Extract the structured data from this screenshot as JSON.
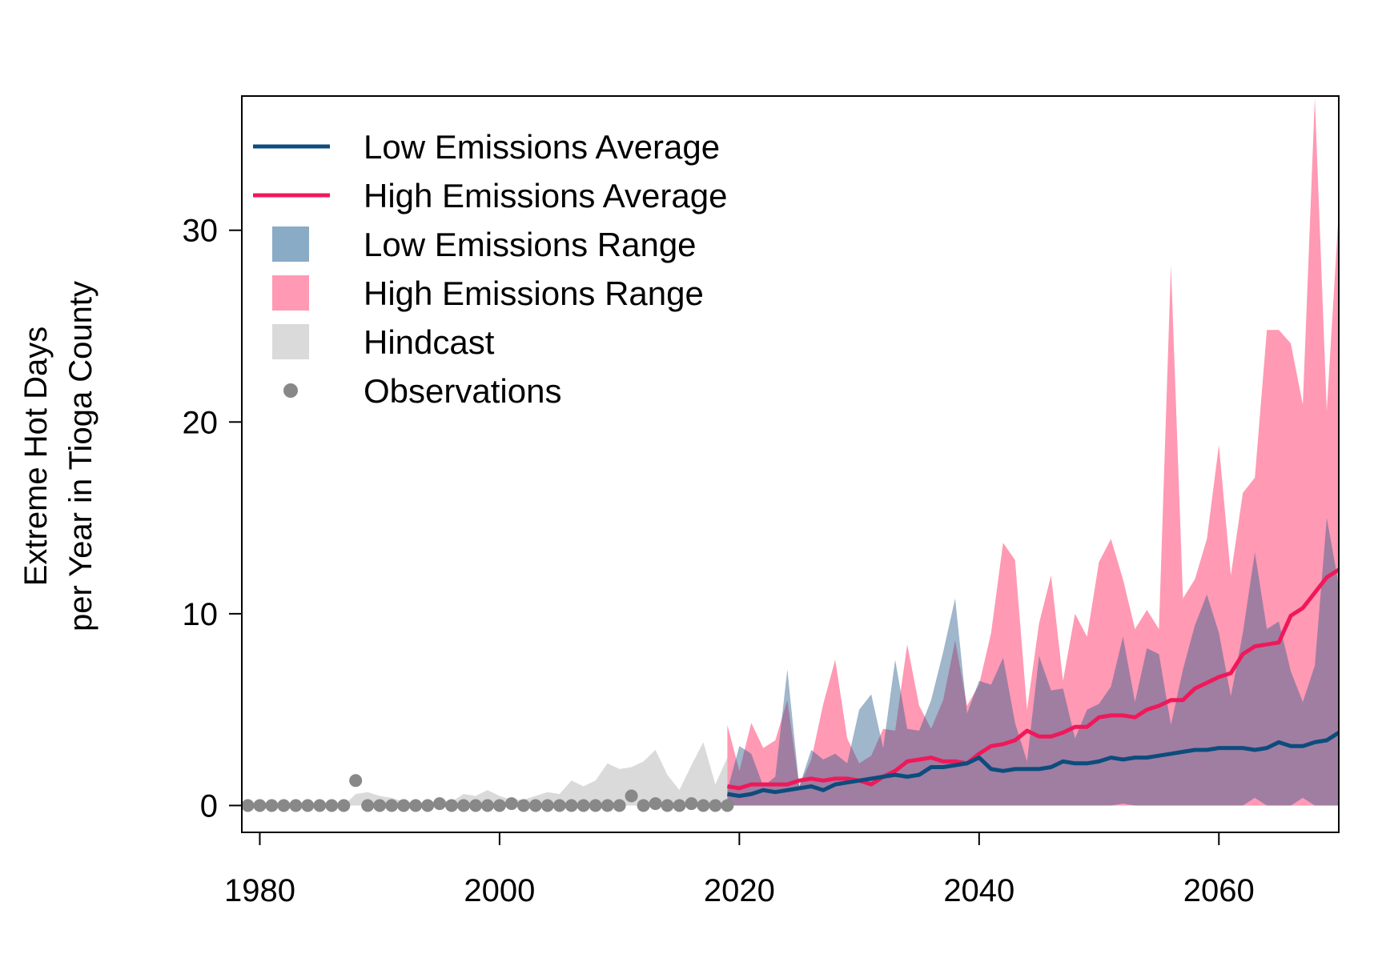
{
  "chart_data": {
    "type": "area",
    "ylabel_line1": "Extreme Hot Days",
    "ylabel_line2": "per Year in Tioga County",
    "xlim": [
      1978.5,
      2070
    ],
    "ylim": [
      -1.4,
      37
    ],
    "x_ticks": [
      1980,
      2000,
      2020,
      2040,
      2060
    ],
    "y_ticks": [
      0,
      10,
      20,
      30
    ],
    "legend_position": "top-left",
    "colors": {
      "low_avg": "#0d4c7d",
      "high_avg": "#f0185a",
      "low_range": "#8aabc6",
      "high_range": "#ff99b4",
      "hindcast": "#dadada",
      "observations": "#888888"
    },
    "legend": [
      {
        "key": "low_avg",
        "kind": "line",
        "label": "Low Emissions Average"
      },
      {
        "key": "high_avg",
        "kind": "line",
        "label": "High Emissions Average"
      },
      {
        "key": "low_range",
        "kind": "box",
        "label": "Low Emissions Range"
      },
      {
        "key": "high_range",
        "kind": "box",
        "label": "High Emissions Range"
      },
      {
        "key": "hindcast",
        "kind": "box",
        "label": "Hindcast"
      },
      {
        "key": "observations",
        "kind": "dot",
        "label": "Observations"
      }
    ],
    "observations": {
      "x": [
        1979,
        1980,
        1981,
        1982,
        1983,
        1984,
        1985,
        1986,
        1987,
        1988,
        1989,
        1990,
        1991,
        1992,
        1993,
        1994,
        1995,
        1996,
        1997,
        1998,
        1999,
        2000,
        2001,
        2002,
        2003,
        2004,
        2005,
        2006,
        2007,
        2008,
        2009,
        2010,
        2011,
        2012,
        2013,
        2014,
        2015,
        2016,
        2017,
        2018,
        2019
      ],
      "y": [
        0,
        0,
        0,
        0,
        0,
        0,
        0,
        0,
        0,
        1.3,
        0,
        0,
        0,
        0,
        0,
        0,
        0.1,
        0,
        0,
        0,
        0,
        0,
        0.1,
        0,
        0,
        0,
        0,
        0,
        0,
        0,
        0,
        0,
        0.5,
        0,
        0.1,
        0,
        0,
        0.1,
        0,
        0,
        0
      ]
    },
    "hindcast": {
      "x": [
        1979,
        1980,
        1981,
        1982,
        1983,
        1984,
        1985,
        1986,
        1987,
        1988,
        1989,
        1990,
        1991,
        1992,
        1993,
        1994,
        1995,
        1996,
        1997,
        1998,
        1999,
        2000,
        2001,
        2002,
        2003,
        2004,
        2005,
        2006,
        2007,
        2008,
        2009,
        2010,
        2011,
        2012,
        2013,
        2014,
        2015,
        2016,
        2017,
        2018,
        2019
      ],
      "upper": [
        0,
        0,
        0,
        0,
        0,
        0,
        0,
        0,
        0,
        0.6,
        0.7,
        0.5,
        0.4,
        0.2,
        0.2,
        0.1,
        0.3,
        0.2,
        0.6,
        0.5,
        0.8,
        0.5,
        0.3,
        0.3,
        0.5,
        0.7,
        0.6,
        1.3,
        1,
        1.3,
        2.2,
        1.9,
        2,
        2.3,
        2.9,
        1.6,
        0.8,
        2.1,
        3.3,
        1.1,
        2.5
      ],
      "lower": [
        0,
        0,
        0,
        0,
        0,
        0,
        0,
        0,
        0,
        0,
        0,
        0,
        0,
        0,
        0,
        0,
        0,
        0,
        0,
        0,
        0,
        0,
        0,
        0,
        0,
        0,
        0,
        0,
        0,
        0,
        0,
        0,
        0,
        0,
        0,
        0,
        0,
        0,
        0,
        0,
        0
      ]
    },
    "high_range": {
      "x": [
        2019,
        2020,
        2021,
        2022,
        2023,
        2024,
        2025,
        2026,
        2027,
        2028,
        2029,
        2030,
        2031,
        2032,
        2033,
        2034,
        2035,
        2036,
        2037,
        2038,
        2039,
        2040,
        2041,
        2042,
        2043,
        2044,
        2045,
        2046,
        2047,
        2048,
        2049,
        2050,
        2051,
        2052,
        2053,
        2054,
        2055,
        2056,
        2057,
        2058,
        2059,
        2060,
        2061,
        2062,
        2063,
        2064,
        2065,
        2066,
        2067,
        2068,
        2069,
        2070
      ],
      "upper": [
        4.2,
        1.8,
        4.3,
        3,
        3.4,
        5.5,
        1,
        2.4,
        5.3,
        7.6,
        3.5,
        2.2,
        2.6,
        4,
        3.9,
        8.4,
        5.2,
        4,
        5.5,
        8.6,
        5.2,
        6.3,
        9,
        13.7,
        12.8,
        5,
        9.5,
        12,
        6.5,
        10,
        8.8,
        12.7,
        13.9,
        11.8,
        9.2,
        10.2,
        9.2,
        28.2,
        10.8,
        11.8,
        13.9,
        18.8,
        12,
        16.3,
        17.1,
        24.8,
        24.8,
        24.1,
        20.9,
        36.9,
        20.6,
        31
      ],
      "lower": [
        0,
        0,
        0,
        0,
        0,
        0,
        0,
        0,
        0,
        0,
        0,
        0,
        0,
        0,
        0,
        0,
        0,
        0,
        0,
        0,
        0,
        0,
        0,
        0,
        0,
        0,
        0,
        0,
        0,
        0,
        0,
        0,
        0,
        0,
        0,
        0,
        0,
        0,
        0,
        0,
        0,
        0,
        0,
        0,
        0,
        0,
        0,
        0,
        0,
        0,
        0,
        0
      ]
    },
    "low_range": {
      "x": [
        2019,
        2020,
        2021,
        2022,
        2023,
        2024,
        2025,
        2026,
        2027,
        2028,
        2029,
        2030,
        2031,
        2032,
        2033,
        2034,
        2035,
        2036,
        2037,
        2038,
        2039,
        2040,
        2041,
        2042,
        2043,
        2044,
        2045,
        2046,
        2047,
        2048,
        2049,
        2050,
        2051,
        2052,
        2053,
        2054,
        2055,
        2056,
        2057,
        2058,
        2059,
        2060,
        2061,
        2062,
        2063,
        2064,
        2065,
        2066,
        2067,
        2068,
        2069,
        2070
      ],
      "upper": [
        0.8,
        3.1,
        2.7,
        1,
        1.5,
        7.1,
        1,
        2.9,
        2.4,
        2.7,
        2.2,
        5,
        5.8,
        3,
        7.6,
        4,
        3.9,
        5.5,
        8,
        10.8,
        4.8,
        6.5,
        6.3,
        7.7,
        4.3,
        2.3,
        7.8,
        6,
        6.1,
        3.5,
        5,
        5.3,
        6.2,
        8.8,
        5.4,
        8.2,
        7.9,
        4.2,
        7.1,
        9.4,
        11,
        9,
        5.7,
        9,
        13.2,
        9.2,
        9.6,
        7,
        5.4,
        7.3,
        15,
        11.5
      ],
      "lower": [
        0,
        0,
        0,
        0,
        0,
        0,
        0,
        0,
        0,
        0,
        0,
        0,
        0,
        0,
        0,
        0,
        0,
        0,
        0,
        0,
        0,
        0,
        0,
        0,
        0,
        0,
        0,
        0,
        0,
        0,
        0,
        0,
        0,
        0.1,
        0,
        0,
        0,
        0,
        0,
        0,
        0,
        0,
        0,
        0,
        0.4,
        0,
        0,
        0,
        0.4,
        0,
        0,
        0
      ]
    },
    "high_avg": {
      "x": [
        2019,
        2020,
        2021,
        2022,
        2023,
        2024,
        2025,
        2026,
        2027,
        2028,
        2029,
        2030,
        2031,
        2032,
        2033,
        2034,
        2035,
        2036,
        2037,
        2038,
        2039,
        2040,
        2041,
        2042,
        2043,
        2044,
        2045,
        2046,
        2047,
        2048,
        2049,
        2050,
        2051,
        2052,
        2053,
        2054,
        2055,
        2056,
        2057,
        2058,
        2059,
        2060,
        2061,
        2062,
        2063,
        2064,
        2065,
        2066,
        2067,
        2068,
        2069,
        2070
      ],
      "y": [
        1,
        0.9,
        1.1,
        1.1,
        1.1,
        1.1,
        1.3,
        1.4,
        1.3,
        1.4,
        1.4,
        1.3,
        1.1,
        1.5,
        1.8,
        2.3,
        2.4,
        2.5,
        2.3,
        2.3,
        2.2,
        2.7,
        3.1,
        3.2,
        3.4,
        3.9,
        3.6,
        3.6,
        3.8,
        4.1,
        4.1,
        4.6,
        4.7,
        4.7,
        4.6,
        5,
        5.2,
        5.5,
        5.5,
        6.1,
        6.4,
        6.7,
        6.9,
        7.9,
        8.3,
        8.4,
        8.5,
        9.9,
        10.3,
        11.1,
        11.9,
        12.3
      ]
    },
    "low_avg": {
      "x": [
        2019,
        2020,
        2021,
        2022,
        2023,
        2024,
        2025,
        2026,
        2027,
        2028,
        2029,
        2030,
        2031,
        2032,
        2033,
        2034,
        2035,
        2036,
        2037,
        2038,
        2039,
        2040,
        2041,
        2042,
        2043,
        2044,
        2045,
        2046,
        2047,
        2048,
        2049,
        2050,
        2051,
        2052,
        2053,
        2054,
        2055,
        2056,
        2057,
        2058,
        2059,
        2060,
        2061,
        2062,
        2063,
        2064,
        2065,
        2066,
        2067,
        2068,
        2069,
        2070
      ],
      "y": [
        0.6,
        0.5,
        0.6,
        0.8,
        0.7,
        0.8,
        0.9,
        1,
        0.8,
        1.1,
        1.2,
        1.3,
        1.4,
        1.5,
        1.6,
        1.5,
        1.6,
        2,
        2,
        2.1,
        2.2,
        2.5,
        1.9,
        1.8,
        1.9,
        1.9,
        1.9,
        2,
        2.3,
        2.2,
        2.2,
        2.3,
        2.5,
        2.4,
        2.5,
        2.5,
        2.6,
        2.7,
        2.8,
        2.9,
        2.9,
        3,
        3,
        3,
        2.9,
        3,
        3.3,
        3.1,
        3.1,
        3.3,
        3.4,
        3.8
      ]
    }
  }
}
